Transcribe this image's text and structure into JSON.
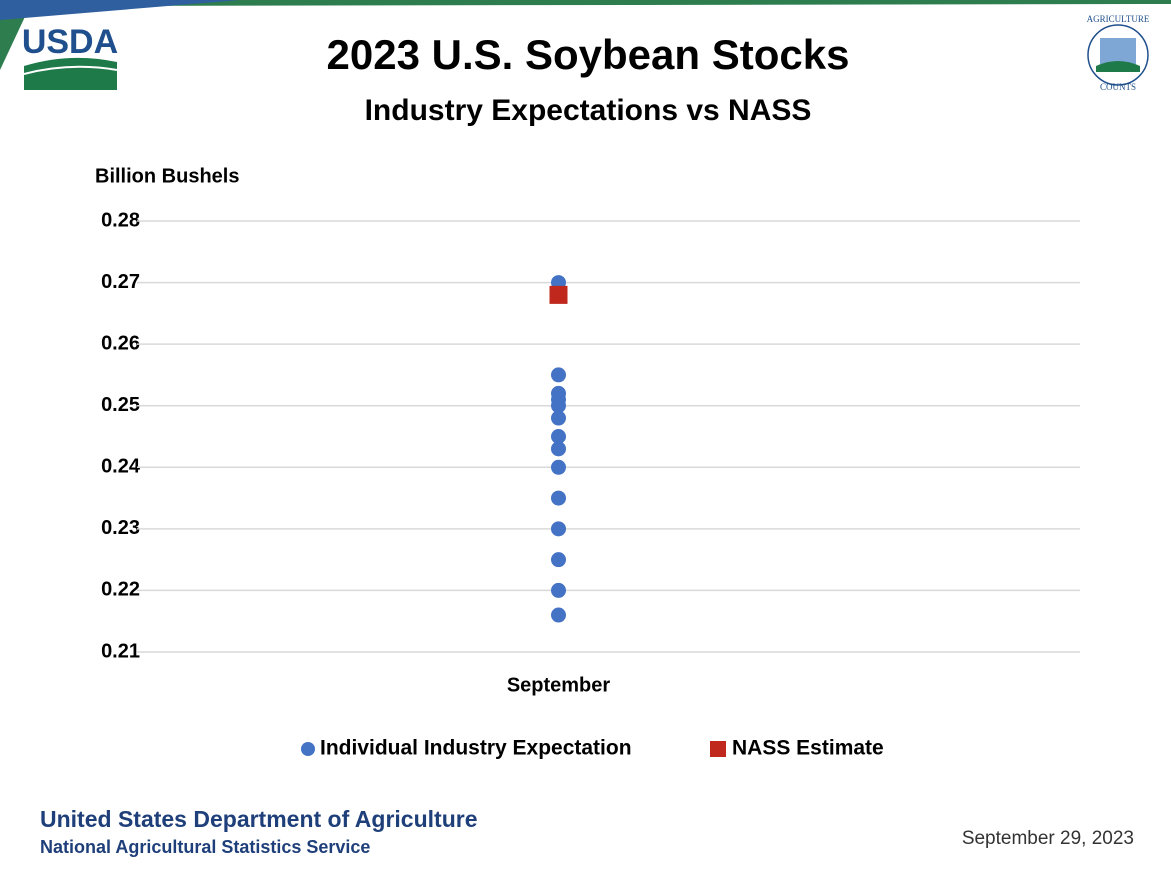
{
  "logos": {
    "left": "USDA",
    "right_top": "AGRICULTURE",
    "right_bottom": "COUNTS"
  },
  "chart_data": {
    "type": "scatter",
    "title": "2023 U.S. Soybean Stocks",
    "subtitle": "Industry Expectations vs NASS",
    "y_label": "Billion Bushels",
    "categories": [
      "September"
    ],
    "series": [
      {
        "name": "Individual Industry Expectation",
        "color": "#4472c4",
        "marker": "circle",
        "values": [
          0.27,
          0.268,
          0.255,
          0.252,
          0.251,
          0.25,
          0.248,
          0.245,
          0.243,
          0.24,
          0.235,
          0.23,
          0.225,
          0.22,
          0.216
        ]
      },
      {
        "name": "NASS Estimate",
        "color": "#c0281e",
        "marker": "square",
        "values": [
          0.268
        ]
      }
    ],
    "ylim": [
      0.21,
      0.28
    ],
    "yticks": [
      0.21,
      0.22,
      0.23,
      0.24,
      0.25,
      0.26,
      0.27,
      0.28
    ],
    "grid": true,
    "legend": "bottom"
  },
  "footer": {
    "org": "United States Department of Agriculture",
    "agency": "National Agricultural Statistics Service",
    "date": "September 29, 2023"
  }
}
